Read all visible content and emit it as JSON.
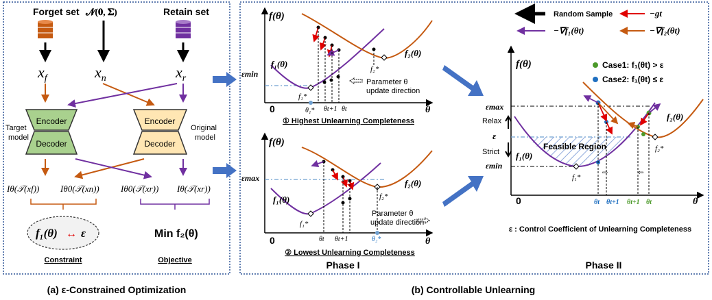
{
  "left": {
    "forget_set": "Forget set",
    "noise": "𝓝(𝟎, 𝚺)",
    "retain_set": "Retain set",
    "xf": "x",
    "xf_sub": "f",
    "xn": "x",
    "xn_sub": "n",
    "xr": "x",
    "xr_sub": "r",
    "encoder": "Encoder",
    "decoder": "Decoder",
    "target_model": [
      "Target",
      "model"
    ],
    "original_model": [
      "Original",
      "model"
    ],
    "i1": "Iθ(𝒯(xf))",
    "i2": "Iθ0(𝒯(xn))",
    "i3": "Iθ0(𝒯(xr))",
    "i4": "Iθ(𝒯(xr))",
    "constraint_f": "f₁(θ)",
    "constraint_eps": "ε",
    "constraint": "Constraint",
    "objective_formula": "Min f₂(θ)",
    "objective": "Objective",
    "caption": "(a) ε-Constrained Optimization"
  },
  "phase1": {
    "top": {
      "yaxis": "f(θ)",
      "eps": "εmin",
      "f1": "f₁(θ)",
      "f2": "f₂(θ)",
      "f1star": "f₁*",
      "f2star": "f₂*",
      "param": [
        "Parameter θ",
        "update direction"
      ],
      "zero": "0",
      "theta": "θ",
      "ticks": [
        "θ₁*",
        "θt+1",
        "θt"
      ],
      "caption": "① Highest Unlearning Completeness"
    },
    "bottom": {
      "yaxis": "f(θ)",
      "eps": "εmax",
      "f1": "f₁(θ)",
      "f2": "f₂(θ)",
      "f1star": "f₁*",
      "f2star": "f₂*",
      "param": [
        "Parameter θ",
        "update direction"
      ],
      "zero": "0",
      "theta": "θ",
      "ticks": [
        "θt",
        "θt+1",
        "θ₂*"
      ],
      "caption": "② Lowest Unlearning Completeness"
    },
    "label": "Phase I"
  },
  "phase2": {
    "legend": {
      "random": "Random Sample",
      "g": "−gt",
      "grad1": "−∇f₁(θt)",
      "grad2": "−∇f₂(θt)"
    },
    "yaxis": "f(θ)",
    "case1": "Case1: f₁(θt) > ε",
    "case2": "Case2: f₁(θt) ≤ ε",
    "epsmax": "εmax",
    "eps": "ε",
    "epsmin": "εmin",
    "relax": "Relax",
    "strict": "Strict",
    "feasible": "Feasible Region",
    "f1": "f₁(θ)",
    "f2": "f₂(θ)",
    "f1star": "f₁*",
    "f2star": "f₂*",
    "zero": "0",
    "theta": "θ",
    "ticks_blue": [
      "θt",
      "θt+1"
    ],
    "ticks_green": [
      "θt+1",
      "θt"
    ],
    "eps_caption": "ε : Control Coefficient of Unlearning Completeness",
    "label": "Phase II"
  },
  "caption_b": "(b) Controllable Unlearning",
  "colors": {
    "orange": "#C55A11",
    "purple": "#7030A0",
    "red": "#E00000",
    "blue": "#1F6FC0",
    "green": "#4C9A2A",
    "frame": "#2F5597",
    "arrow_blue": "#4472C4"
  }
}
